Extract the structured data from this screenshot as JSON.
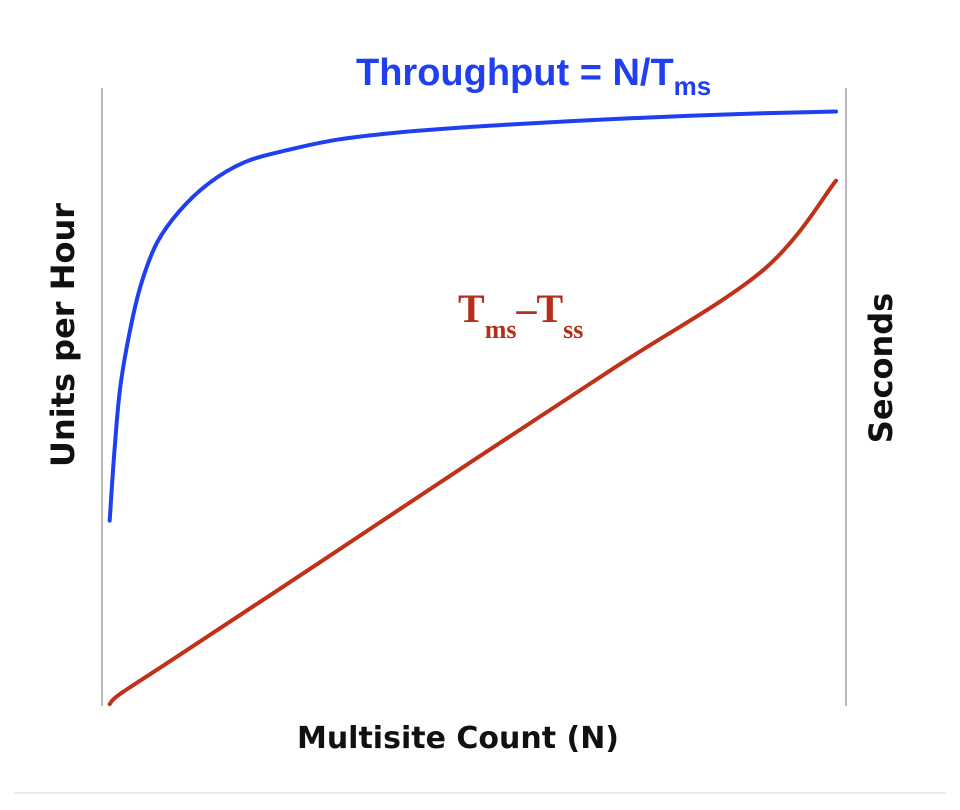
{
  "chart_data": {
    "type": "line",
    "xlabel": "Multisite Count (N)",
    "ylabel_left": "Units per Hour",
    "ylabel_right": "Seconds",
    "xlim": [
      0,
      1
    ],
    "ylim": [
      0,
      1
    ],
    "grid": false,
    "series": [
      {
        "label_main": "Throughput = N/T",
        "label_sub": "ms",
        "color": "#1f3ff0",
        "points": [
          [
            0.005,
            0.3
          ],
          [
            0.012,
            0.42
          ],
          [
            0.02,
            0.52
          ],
          [
            0.035,
            0.62
          ],
          [
            0.05,
            0.69
          ],
          [
            0.07,
            0.75
          ],
          [
            0.1,
            0.8
          ],
          [
            0.14,
            0.845
          ],
          [
            0.19,
            0.88
          ],
          [
            0.25,
            0.9
          ],
          [
            0.32,
            0.917
          ],
          [
            0.4,
            0.928
          ],
          [
            0.5,
            0.937
          ],
          [
            0.6,
            0.944
          ],
          [
            0.7,
            0.95
          ],
          [
            0.8,
            0.955
          ],
          [
            0.9,
            0.959
          ],
          [
            1.0,
            0.962
          ]
        ]
      },
      {
        "label_main": "T",
        "label_sub": "ms",
        "label_mid": "–T",
        "label_sub2": "ss",
        "color": "#c0301a",
        "points": [
          [
            0.005,
            0.003
          ],
          [
            0.02,
            0.02
          ],
          [
            0.1,
            0.082
          ],
          [
            0.3,
            0.238
          ],
          [
            0.5,
            0.395
          ],
          [
            0.7,
            0.55
          ],
          [
            0.9,
            0.705
          ],
          [
            1.0,
            0.85
          ]
        ]
      }
    ]
  }
}
